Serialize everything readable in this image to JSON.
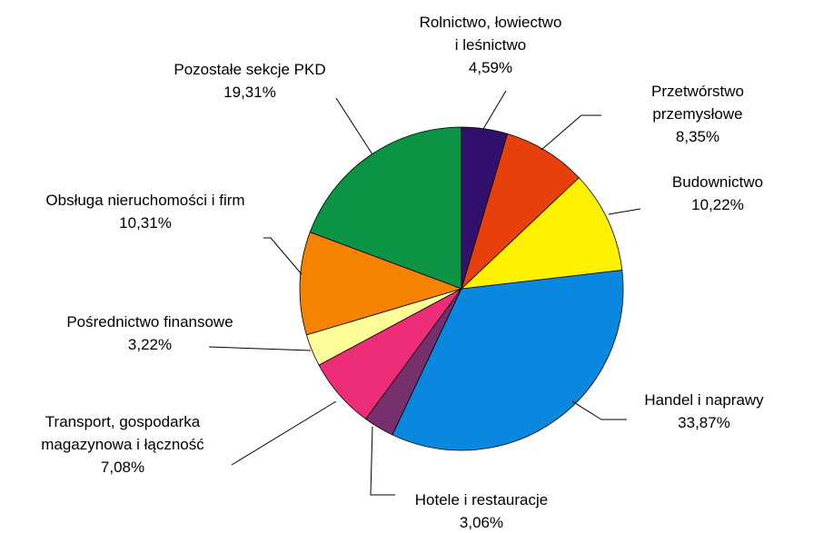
{
  "chart_data": {
    "type": "pie",
    "categories": [
      "Rolnictwo, łowiectwo\ni leśnictwo",
      "Przetwórstwo przemysłowe",
      "Budownictwo",
      "Handel i naprawy",
      "Hotele i restauracje",
      "Transport, gospodarka\nmagazynowa i łączność",
      "Pośrednictwo  finansowe",
      "Obsługa nieruchomości i firm",
      "Pozostałe sekcje PKD"
    ],
    "values": [
      4.59,
      8.35,
      10.22,
      33.87,
      3.06,
      7.08,
      3.22,
      10.31,
      19.31
    ],
    "value_labels": [
      "4,59%",
      "8,35%",
      "10,22%",
      "33,87%",
      "3,06%",
      "7,08%",
      "3,22%",
      "10,31%",
      "19,31%"
    ],
    "colors": [
      "#33106e",
      "#e8400c",
      "#fff200",
      "#0a88e0",
      "#77306e",
      "#ee2d78",
      "#ffff99",
      "#f58200",
      "#0a9444"
    ]
  }
}
